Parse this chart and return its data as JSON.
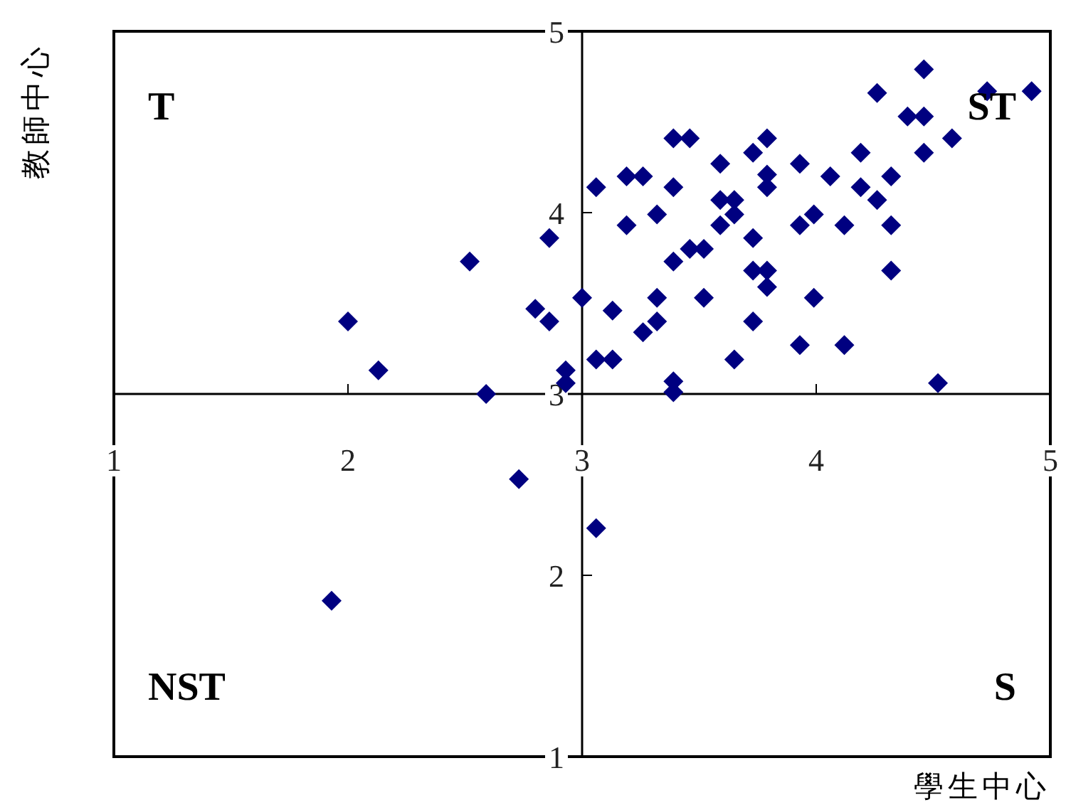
{
  "chart_data": {
    "type": "scatter",
    "xlabel": "學生中心",
    "ylabel": "教師中心",
    "marker": "diamond",
    "xlim": [
      1,
      5
    ],
    "ylim": [
      1,
      5
    ],
    "xticks": [
      1,
      2,
      3,
      4,
      5
    ],
    "yticks": [
      1,
      2,
      3,
      4,
      5
    ],
    "annotations": [
      "T",
      "ST",
      "NST",
      "S"
    ],
    "series": [
      {
        "color": "#000080",
        "x": [
          2.0,
          2.13,
          2.52,
          2.59,
          2.86,
          2.8,
          2.86,
          2.93,
          2.93,
          3.0,
          3.06,
          3.06,
          3.13,
          3.13,
          3.19,
          3.26,
          3.19,
          3.32,
          3.32,
          3.32,
          3.26,
          3.39,
          3.46,
          3.39,
          3.39,
          3.46,
          3.52,
          3.39,
          3.39,
          3.52,
          3.59,
          3.59,
          3.59,
          3.65,
          3.65,
          3.65,
          3.73,
          3.79,
          3.79,
          3.79,
          3.73,
          3.73,
          3.79,
          3.79,
          3.73,
          3.93,
          3.93,
          3.99,
          3.99,
          3.93,
          4.06,
          4.12,
          4.12,
          4.19,
          4.19,
          4.26,
          4.26,
          4.32,
          4.32,
          4.32,
          4.39,
          4.46,
          4.46,
          4.46,
          4.58,
          4.52,
          4.73,
          4.92,
          2.73,
          3.06,
          1.93
        ],
        "values": [
          3.4,
          3.13,
          3.73,
          3.0,
          3.86,
          3.47,
          3.4,
          3.13,
          3.06,
          3.53,
          4.14,
          3.19,
          3.46,
          3.19,
          4.2,
          4.2,
          3.93,
          3.99,
          3.53,
          3.4,
          3.34,
          4.41,
          4.41,
          4.14,
          3.73,
          3.8,
          3.8,
          3.07,
          3.01,
          3.53,
          4.27,
          4.07,
          3.93,
          4.07,
          3.99,
          3.19,
          4.33,
          4.41,
          4.21,
          4.14,
          3.86,
          3.68,
          3.68,
          3.59,
          3.4,
          4.27,
          3.93,
          3.99,
          3.53,
          3.27,
          4.2,
          3.93,
          3.27,
          4.33,
          4.14,
          4.07,
          4.66,
          4.2,
          3.93,
          3.68,
          4.53,
          4.53,
          4.79,
          4.33,
          4.41,
          3.06,
          4.67,
          4.67,
          2.53,
          2.26,
          1.86
        ]
      }
    ]
  }
}
